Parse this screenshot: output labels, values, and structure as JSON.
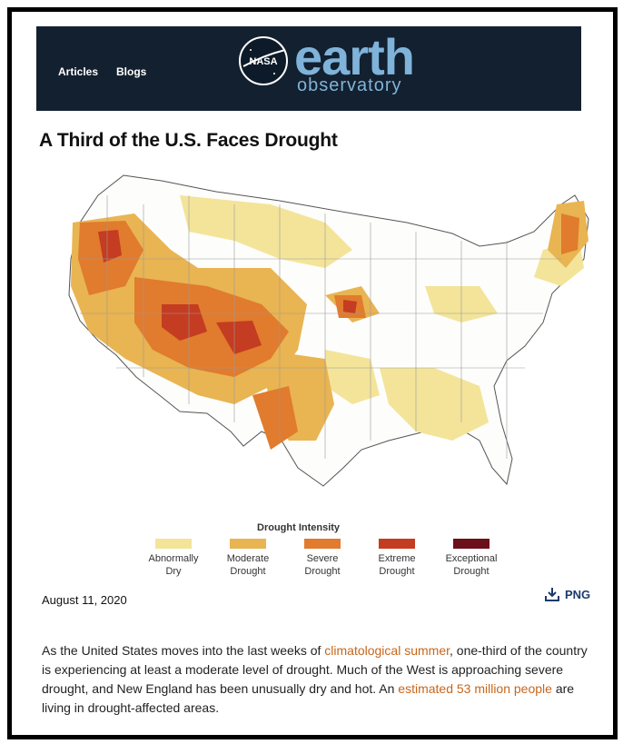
{
  "header": {
    "nav": [
      "Articles",
      "Blogs"
    ],
    "nasa_label": "NASA",
    "logo_title": "earth",
    "logo_subtitle": "observatory"
  },
  "article": {
    "title": "A Third of the U.S. Faces Drought",
    "date": "August 11, 2020",
    "download_label": "PNG",
    "body": {
      "part1": "As the United States moves into the last weeks of ",
      "link1": "climatological summer",
      "part2": ", one-third of the country is experiencing at least a moderate level of drought. Much of the West is approaching severe drought, and New England has been unusually dry and hot. An ",
      "link2": "estimated 53 million people",
      "part3": " are living in drought-affected areas."
    }
  },
  "legend": {
    "title": "Drought Intensity",
    "items": [
      {
        "label1": "Abnormally",
        "label2": "Dry",
        "color": "#f3e49a"
      },
      {
        "label1": "Moderate",
        "label2": "Drought",
        "color": "#e9b452"
      },
      {
        "label1": "Severe",
        "label2": "Drought",
        "color": "#e17b2e"
      },
      {
        "label1": "Extreme",
        "label2": "Drought",
        "color": "#c43c21"
      },
      {
        "label1": "Exceptional",
        "label2": "Drought",
        "color": "#6b0f1a"
      }
    ]
  }
}
